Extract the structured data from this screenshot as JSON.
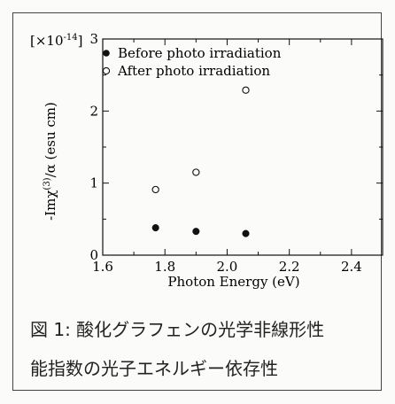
{
  "chart_data": {
    "type": "scatter",
    "xlabel": "Photon Energy (eV)",
    "ylabel": "-Imχ⁽³⁾/α (esu cm)",
    "ylabel_prefix": "-Imχ",
    "ylabel_sup": "(3)",
    "ylabel_suffix": "/α (esu cm)",
    "y_multiplier_base": "[×10",
    "y_multiplier_exp": "-14",
    "y_multiplier_close": "]",
    "xlim": [
      1.6,
      2.5
    ],
    "ylim": [
      0,
      3
    ],
    "x_ticks": [
      "1.6",
      "1.8",
      "2.0",
      "2.2",
      "2.4"
    ],
    "y_ticks": [
      "0",
      "1",
      "2",
      "3"
    ],
    "legend_position": "top-left",
    "series": [
      {
        "name": "Before photo irradiation",
        "marker": "filled-circle",
        "x": [
          1.77,
          1.9,
          2.06
        ],
        "y": [
          0.38,
          0.33,
          0.3
        ]
      },
      {
        "name": "After photo irradiation",
        "marker": "open-circle",
        "x": [
          1.77,
          1.9,
          2.06
        ],
        "y": [
          0.91,
          1.15,
          2.29
        ]
      }
    ]
  },
  "caption": {
    "line1": "図 1: 酸化グラフェンの光学非線形性",
    "line2": "能指数の光子エネルギー依存性"
  },
  "colors": {
    "ink": "#111111",
    "background": "#fbfbf9"
  }
}
